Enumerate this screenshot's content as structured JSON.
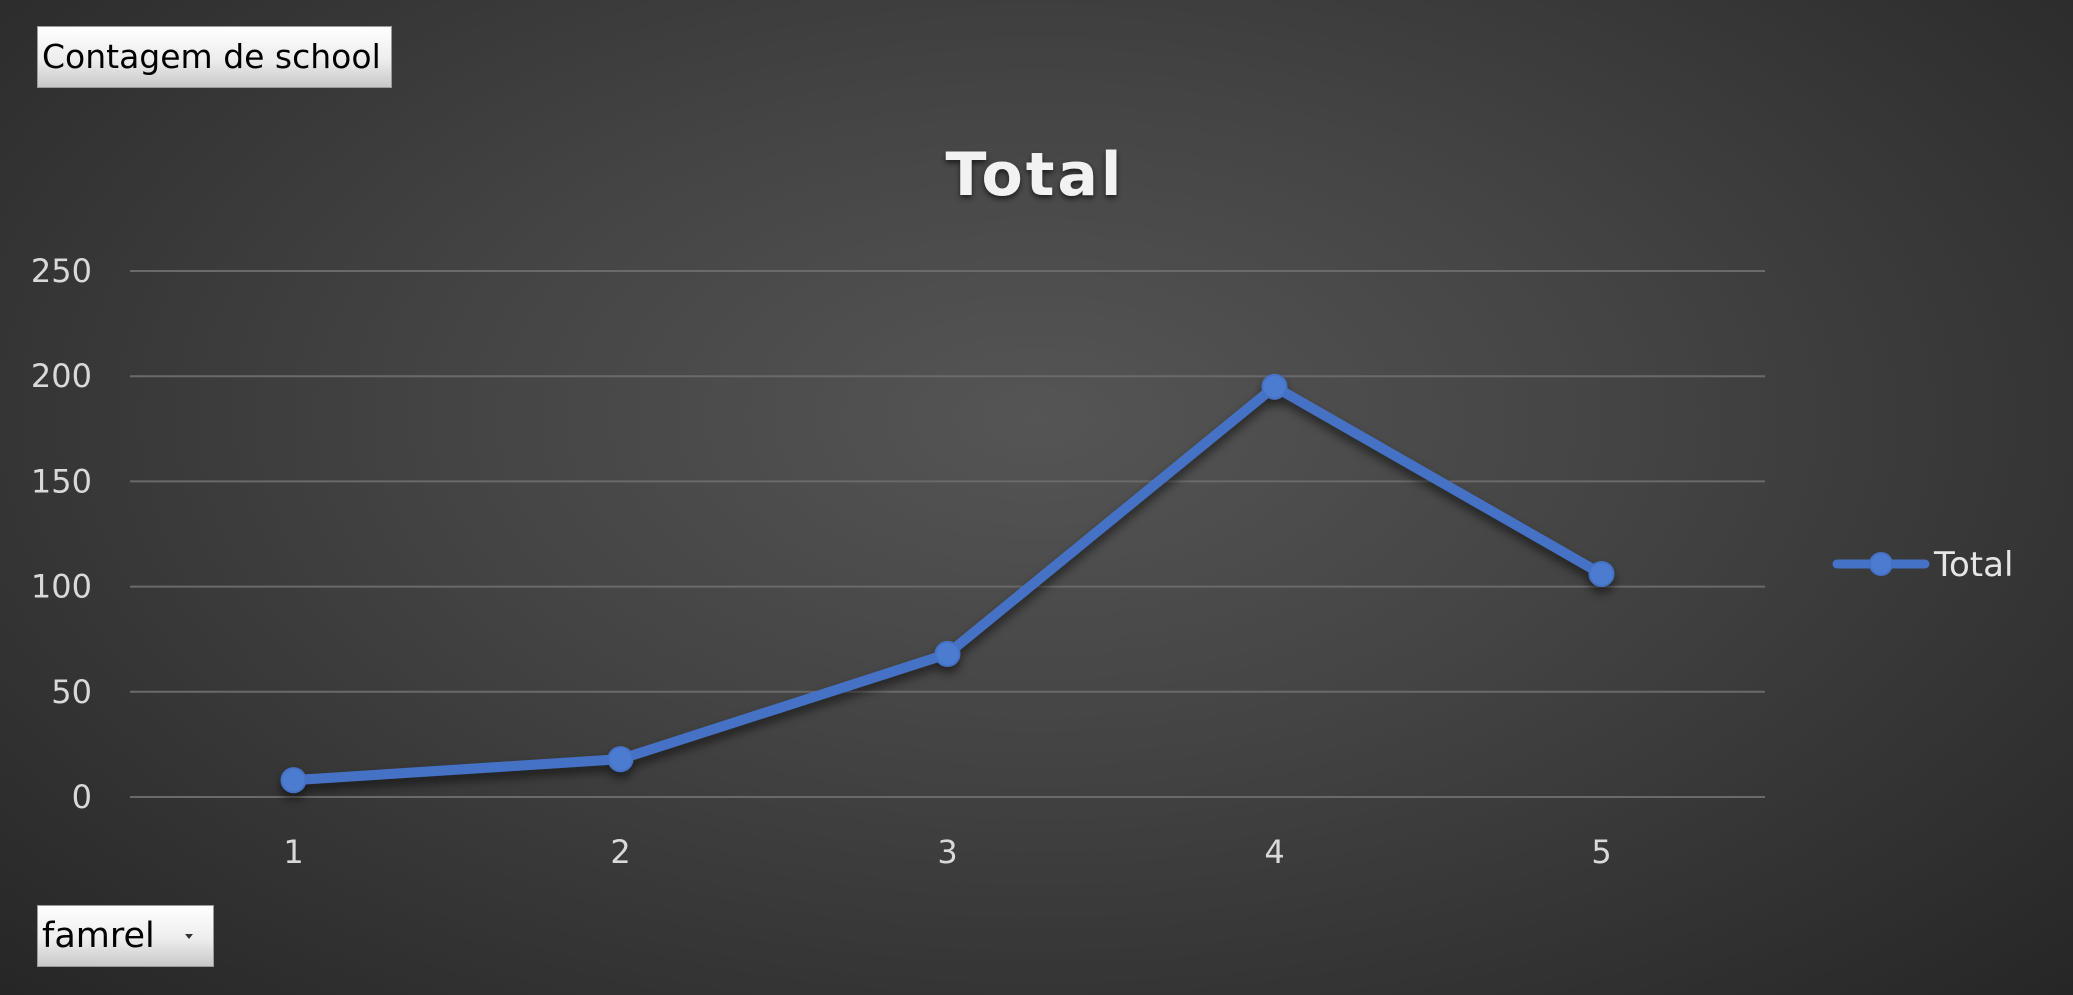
{
  "pivot": {
    "value_field_label": "Contagem de school",
    "axis_field_label": "famrel"
  },
  "chart_data": {
    "type": "line",
    "title": "Total",
    "xlabel": "",
    "ylabel": "",
    "categories": [
      "1",
      "2",
      "3",
      "4",
      "5"
    ],
    "series": [
      {
        "name": "Total",
        "values": [
          8,
          18,
          68,
          195,
          106
        ]
      }
    ],
    "ylim": [
      0,
      250
    ],
    "yticks": [
      0,
      50,
      100,
      150,
      200,
      250
    ],
    "grid": true,
    "legend": "right",
    "colors": {
      "series": "#4472C4",
      "marker": "#4C7BD0",
      "gridline": "#6a6a6a"
    }
  }
}
